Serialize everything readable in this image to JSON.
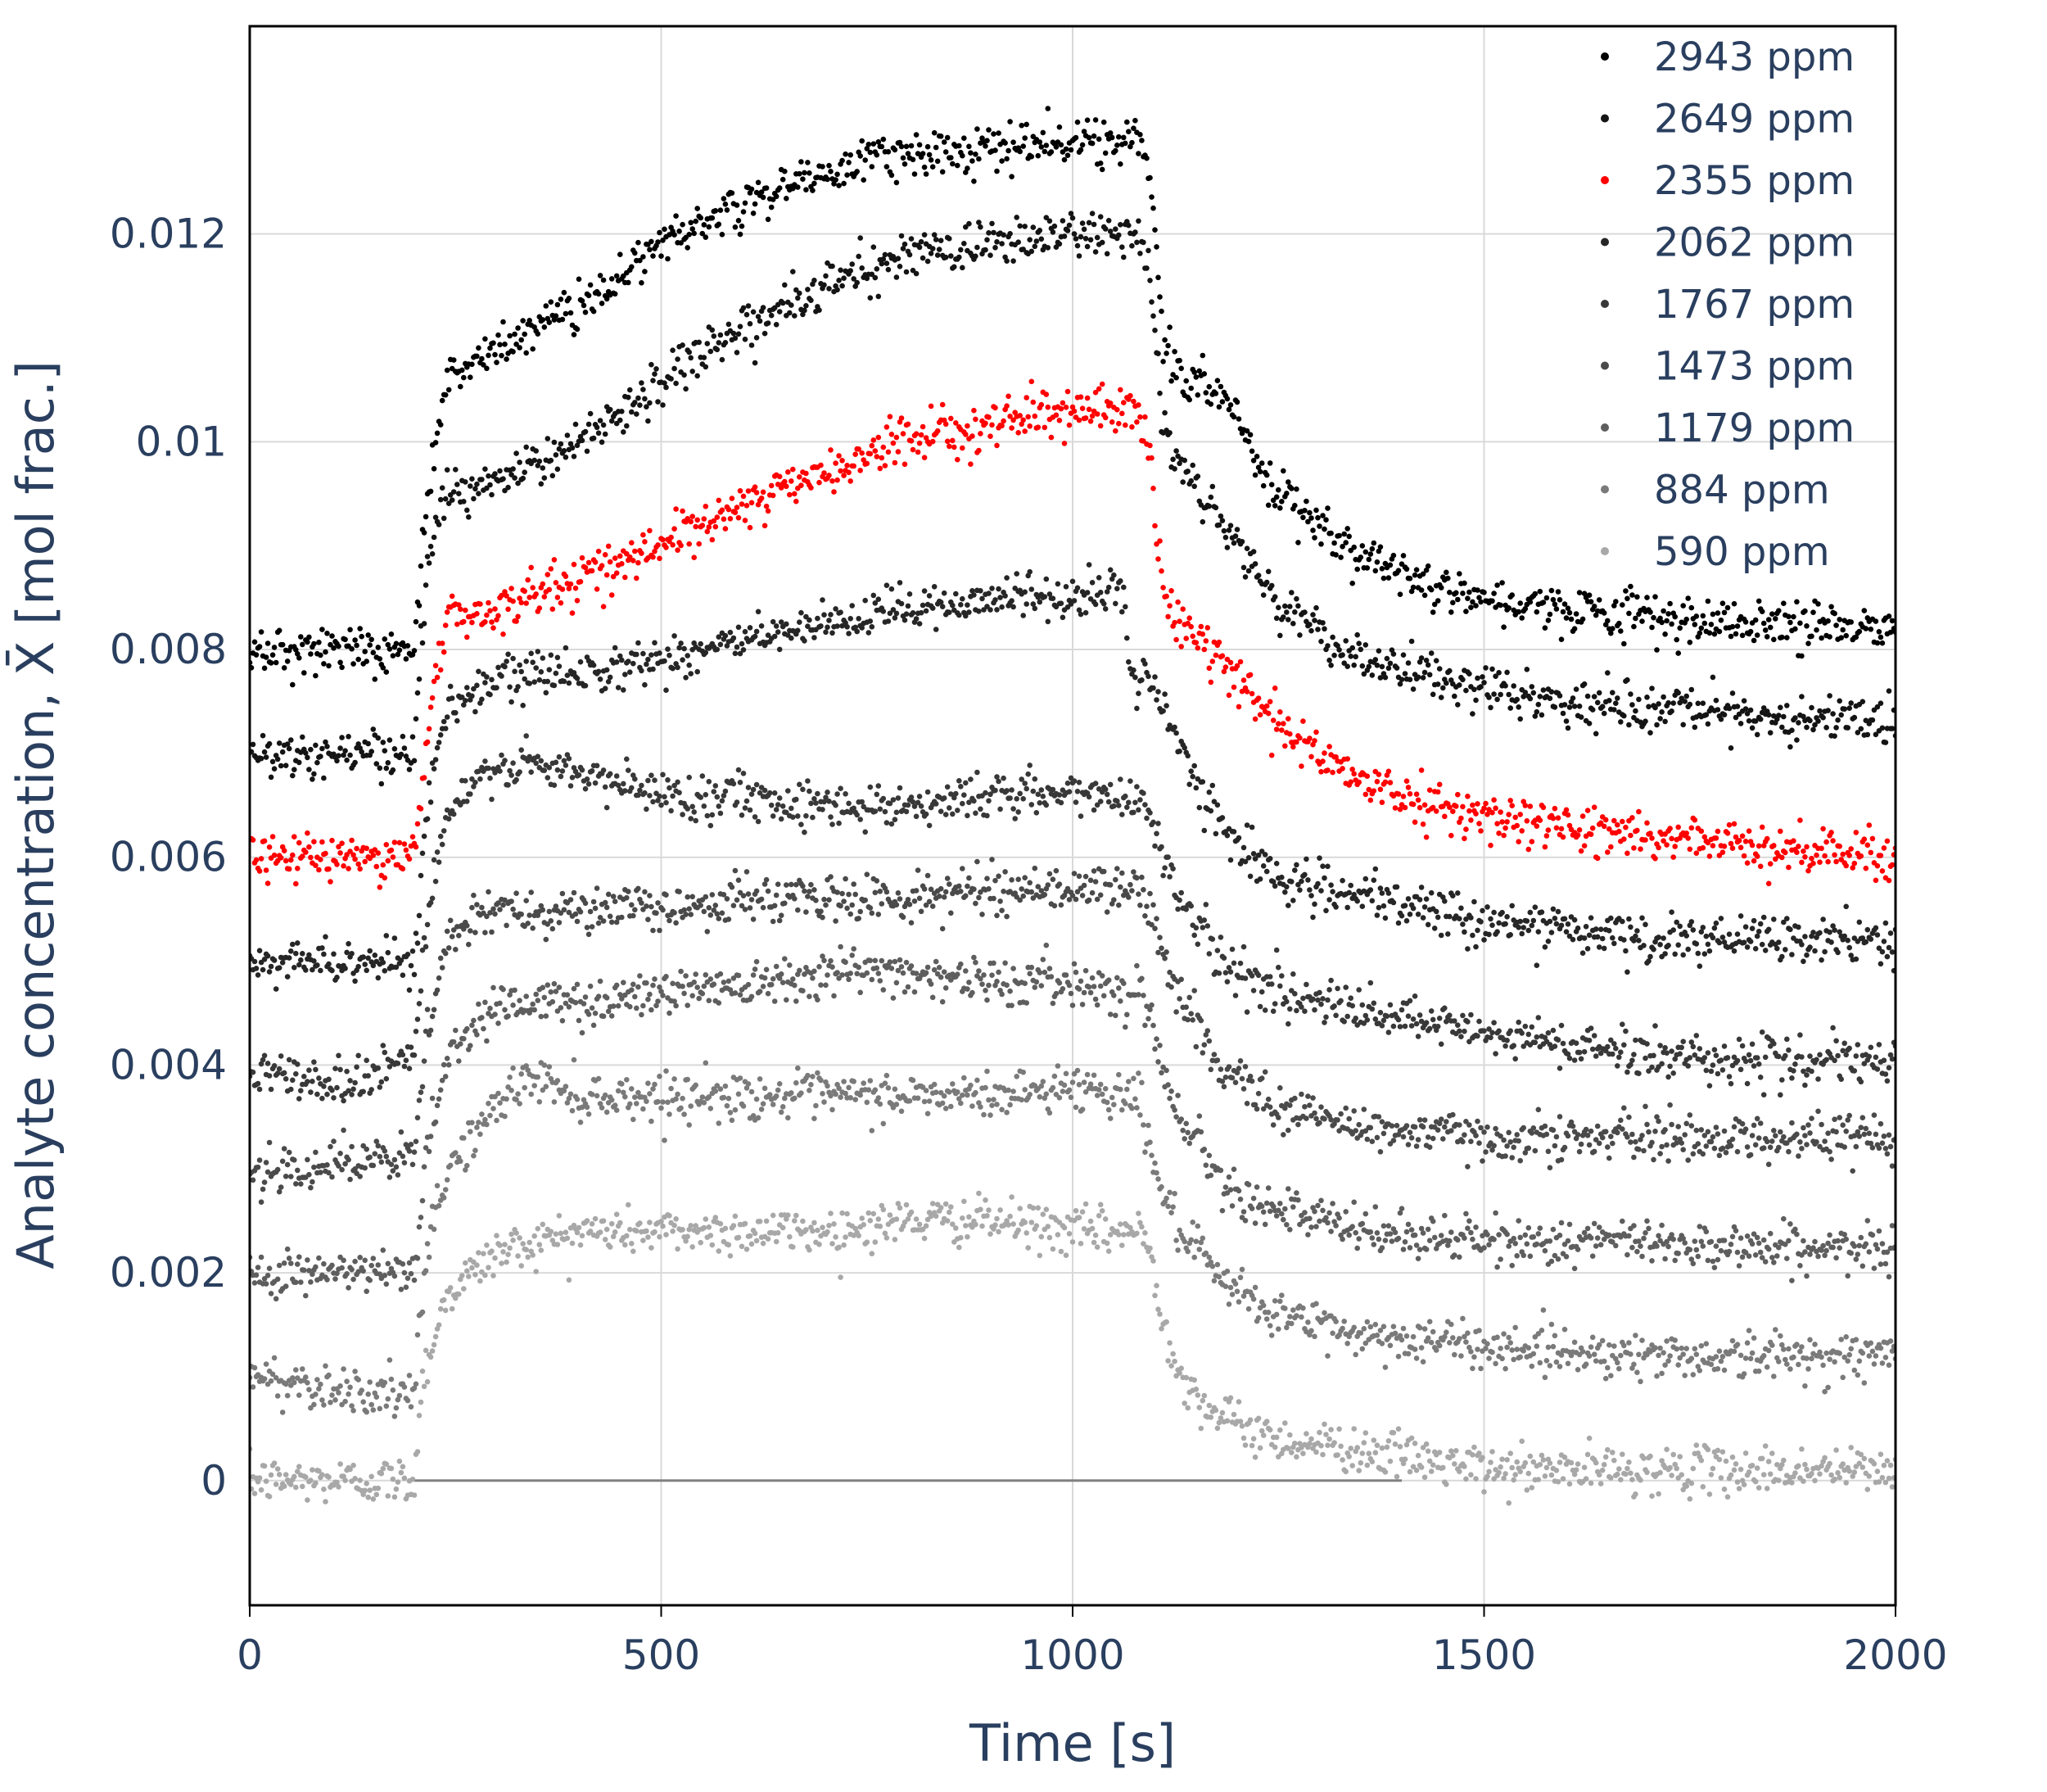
{
  "chart_data": {
    "type": "scatter",
    "title": "",
    "xlabel": "Time [s]",
    "ylabel": "Analyte concentration, X̄  [mol frac.]",
    "xlim": [
      0,
      2000
    ],
    "ylim": [
      -0.0012,
      0.014
    ],
    "grid": true,
    "legend_position": "top-right",
    "x_ticks": [
      0,
      500,
      1000,
      1500,
      2000
    ],
    "x_tick_labels": [
      "0",
      "500",
      "1000",
      "1500",
      "2000"
    ],
    "y_ticks": [
      0,
      0.002,
      0.004,
      0.006,
      0.008,
      0.01,
      0.012
    ],
    "y_tick_labels": [
      "0",
      "0.002",
      "0.004",
      "0.006",
      "0.008",
      "0.01",
      "0.012"
    ],
    "reference_line": {
      "y": 0,
      "x_start": 200,
      "x_end": 1400,
      "color": "#808080"
    },
    "series": [
      {
        "name": "2943 ppm",
        "color": "#000000",
        "offset": 0.008,
        "x": [
          0,
          200,
          215,
          240,
          300,
          400,
          500,
          600,
          700,
          800,
          900,
          1000,
          1080,
          1095,
          1110,
          1140,
          1180,
          1250,
          1350,
          1500,
          1700,
          2000
        ],
        "y": [
          0.0,
          0.0,
          0.0015,
          0.0026,
          0.0029,
          0.0033,
          0.0039,
          0.0043,
          0.0046,
          0.0048,
          0.0048,
          0.0049,
          0.0049,
          0.0045,
          0.0029,
          0.0026,
          0.0025,
          0.0015,
          0.0009,
          0.0005,
          0.0003,
          0.0002
        ]
      },
      {
        "name": "2649 ppm",
        "color": "#141414",
        "offset": 0.007,
        "x": [
          0,
          200,
          215,
          240,
          300,
          400,
          500,
          600,
          700,
          800,
          900,
          1000,
          1080,
          1095,
          1110,
          1140,
          1180,
          1250,
          1350,
          1500,
          1700,
          2000
        ],
        "y": [
          0.0,
          0.0,
          0.0018,
          0.0025,
          0.0026,
          0.003,
          0.0036,
          0.0041,
          0.0045,
          0.0048,
          0.0049,
          0.005,
          0.005,
          0.0045,
          0.0031,
          0.0027,
          0.0023,
          0.0014,
          0.0009,
          0.0006,
          0.0004,
          0.0003
        ]
      },
      {
        "name": "2355 ppm",
        "color": "#ff0000",
        "offset": 0.006,
        "x": [
          0,
          200,
          215,
          240,
          300,
          400,
          500,
          600,
          700,
          800,
          900,
          1000,
          1080,
          1095,
          1110,
          1140,
          1180,
          1250,
          1350,
          1500,
          1700,
          2000
        ],
        "y": [
          0.0,
          0.0,
          0.0012,
          0.0023,
          0.0024,
          0.0027,
          0.003,
          0.0034,
          0.0037,
          0.004,
          0.0042,
          0.0043,
          0.0043,
          0.0038,
          0.0025,
          0.0022,
          0.0019,
          0.0013,
          0.0007,
          0.0004,
          0.0002,
          0.0
        ]
      },
      {
        "name": "2062 ppm",
        "color": "#262626",
        "offset": 0.005,
        "x": [
          0,
          200,
          215,
          240,
          300,
          400,
          500,
          600,
          700,
          800,
          900,
          1000,
          1060,
          1075,
          1090,
          1110,
          1140,
          1180,
          1250,
          1350,
          1500,
          1700,
          2000
        ],
        "y": [
          0.0,
          0.0,
          0.0015,
          0.0024,
          0.0027,
          0.0028,
          0.0029,
          0.0031,
          0.0032,
          0.0034,
          0.0035,
          0.0035,
          0.0036,
          0.0025,
          0.0028,
          0.0024,
          0.0019,
          0.0013,
          0.0008,
          0.0006,
          0.0004,
          0.0002,
          0.0002
        ]
      },
      {
        "name": "1767 ppm",
        "color": "#383838",
        "offset": 0.004,
        "x": [
          0,
          100,
          200,
          215,
          240,
          300,
          400,
          500,
          600,
          700,
          800,
          900,
          1000,
          1080,
          1095,
          1110,
          1140,
          1180,
          1250,
          1350,
          1500,
          1700,
          2000
        ],
        "y": [
          0.0,
          -0.0002,
          0.0001,
          0.0014,
          0.0024,
          0.0029,
          0.0028,
          0.0026,
          0.0026,
          0.0025,
          0.0025,
          0.0026,
          0.0026,
          0.0026,
          0.0024,
          0.002,
          0.0015,
          0.001,
          0.0007,
          0.0005,
          0.0003,
          0.0001,
          0.0
        ]
      },
      {
        "name": "1473 ppm",
        "color": "#4a4a4a",
        "offset": 0.003,
        "x": [
          0,
          200,
          215,
          240,
          300,
          400,
          500,
          600,
          700,
          800,
          900,
          1000,
          1080,
          1095,
          1110,
          1140,
          1180,
          1250,
          1350,
          1500,
          1700,
          2000
        ],
        "y": [
          0.0,
          0.0001,
          0.0013,
          0.0022,
          0.0025,
          0.0025,
          0.0025,
          0.0026,
          0.0026,
          0.0026,
          0.0027,
          0.0027,
          0.0027,
          0.0025,
          0.002,
          0.0015,
          0.001,
          0.0006,
          0.0004,
          0.0003,
          0.0003,
          0.0003
        ]
      },
      {
        "name": "1179 ppm",
        "color": "#5e5e5e",
        "offset": 0.002,
        "x": [
          0,
          200,
          215,
          240,
          300,
          400,
          500,
          600,
          700,
          800,
          900,
          1000,
          1080,
          1095,
          1110,
          1140,
          1180,
          1250,
          1350,
          1500,
          1700,
          2000
        ],
        "y": [
          0.0,
          0.0,
          0.0012,
          0.0021,
          0.0026,
          0.0026,
          0.0027,
          0.0028,
          0.0029,
          0.0029,
          0.0028,
          0.0028,
          0.0027,
          0.0025,
          0.0019,
          0.0014,
          0.0009,
          0.0006,
          0.0004,
          0.0003,
          0.0003,
          0.0002
        ]
      },
      {
        "name": "884 ppm",
        "color": "#7a7a7a",
        "offset": 0.001,
        "x": [
          0,
          200,
          215,
          240,
          300,
          340,
          400,
          500,
          600,
          700,
          800,
          900,
          1000,
          1080,
          1095,
          1110,
          1140,
          1180,
          1250,
          1350,
          1500,
          1700,
          2000
        ],
        "y": [
          0.0,
          -0.0002,
          0.0012,
          0.002,
          0.0026,
          0.0029,
          0.0027,
          0.0027,
          0.0027,
          0.0027,
          0.0027,
          0.0027,
          0.0028,
          0.0027,
          0.0022,
          0.0017,
          0.0013,
          0.0009,
          0.0006,
          0.0004,
          0.0003,
          0.0002,
          0.0002
        ]
      },
      {
        "name": "590 ppm",
        "color": "#a8a8a8",
        "offset": 0.0,
        "x": [
          0,
          200,
          210,
          240,
          300,
          400,
          500,
          600,
          700,
          800,
          900,
          1000,
          1080,
          1095,
          1110,
          1140,
          1180,
          1250,
          1350,
          1500,
          1700,
          2000
        ],
        "y": [
          0.0,
          0.0,
          0.001,
          0.0018,
          0.0022,
          0.0024,
          0.0024,
          0.0024,
          0.0024,
          0.0025,
          0.0025,
          0.0024,
          0.0024,
          0.0022,
          0.0015,
          0.0009,
          0.0006,
          0.0004,
          0.0003,
          0.0001,
          0.0001,
          0.0001
        ]
      }
    ]
  }
}
